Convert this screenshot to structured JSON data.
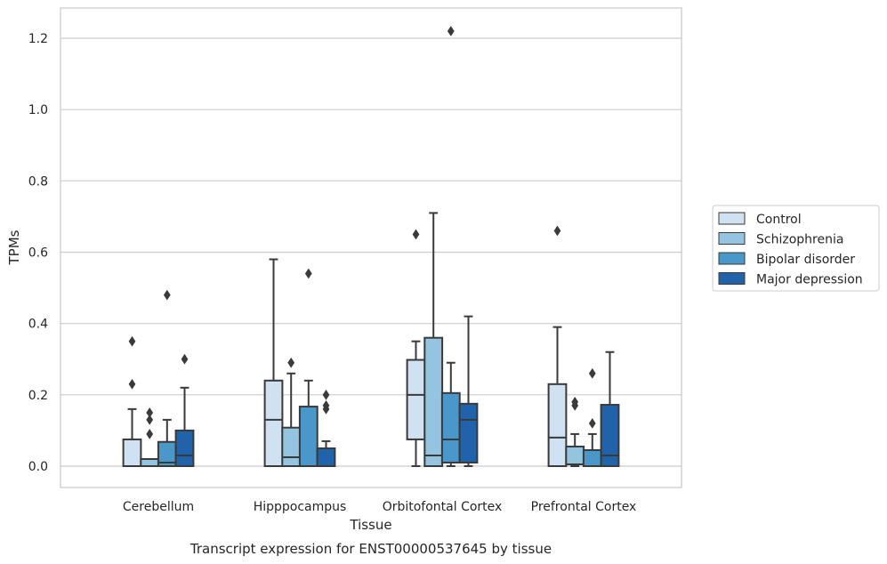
{
  "chart_data": {
    "type": "box",
    "title": "Transcript expression for ENST00000537645 by tissue",
    "xlabel": "Tissue",
    "ylabel": "TPMs",
    "ylim": [
      -0.06,
      1.28
    ],
    "yticks": [
      "0.0",
      "0.2",
      "0.4",
      "0.6",
      "0.8",
      "1.0",
      "1.2"
    ],
    "grid": true,
    "legend_position": "right",
    "categories": [
      "Cerebellum",
      "Hipppocampus",
      "Orbitofontal Cortex",
      "Prefrontal Cortex"
    ],
    "colors": {
      "Control": "#d0e1f2",
      "Schizophrenia": "#94c4df",
      "Bipolar disorder": "#4a98c9",
      "Major depression": "#2163aa",
      "box_edge": "#3a3a3a",
      "grid": "#cccccc",
      "frame": "#cccccc"
    },
    "series": [
      {
        "name": "Control",
        "boxes": [
          {
            "whislo": 0.0,
            "q1": 0.0,
            "med": 0.0,
            "q3": 0.075,
            "whishi": 0.16,
            "fliers": [
              0.23,
              0.35
            ]
          },
          {
            "whislo": 0.0,
            "q1": 0.0,
            "med": 0.13,
            "q3": 0.24,
            "whishi": 0.58,
            "fliers": []
          },
          {
            "whislo": 0.0,
            "q1": 0.075,
            "med": 0.2,
            "q3": 0.298,
            "whishi": 0.35,
            "fliers": [
              0.65
            ]
          },
          {
            "whislo": 0.0,
            "q1": 0.0,
            "med": 0.08,
            "q3": 0.23,
            "whishi": 0.39,
            "fliers": [
              0.66
            ]
          }
        ]
      },
      {
        "name": "Schizophrenia",
        "boxes": [
          {
            "whislo": 0.0,
            "q1": 0.0,
            "med": 0.0,
            "q3": 0.02,
            "whishi": 0.02,
            "fliers": [
              0.09,
              0.13,
              0.15
            ]
          },
          {
            "whislo": 0.0,
            "q1": 0.0,
            "med": 0.025,
            "q3": 0.108,
            "whishi": 0.26,
            "fliers": [
              0.29
            ]
          },
          {
            "whislo": 0.0,
            "q1": 0.0,
            "med": 0.03,
            "q3": 0.36,
            "whishi": 0.71,
            "fliers": []
          },
          {
            "whislo": 0.0,
            "q1": 0.005,
            "med": 0.005,
            "q3": 0.055,
            "whishi": 0.09,
            "fliers": [
              0.17,
              0.18
            ]
          }
        ]
      },
      {
        "name": "Bipolar disorder",
        "boxes": [
          {
            "whislo": 0.0,
            "q1": 0.0,
            "med": 0.01,
            "q3": 0.068,
            "whishi": 0.13,
            "fliers": [
              0.48
            ]
          },
          {
            "whislo": 0.0,
            "q1": 0.0,
            "med": 0.0,
            "q3": 0.167,
            "whishi": 0.24,
            "fliers": [
              0.54
            ]
          },
          {
            "whislo": 0.0,
            "q1": 0.01,
            "med": 0.075,
            "q3": 0.205,
            "whishi": 0.29,
            "fliers": [
              1.22
            ]
          },
          {
            "whislo": 0.0,
            "q1": 0.0,
            "med": 0.0,
            "q3": 0.045,
            "whishi": 0.09,
            "fliers": [
              0.12,
              0.26
            ]
          }
        ]
      },
      {
        "name": "Major depression",
        "boxes": [
          {
            "whislo": 0.0,
            "q1": 0.0,
            "med": 0.03,
            "q3": 0.1,
            "whishi": 0.22,
            "fliers": [
              0.3
            ]
          },
          {
            "whislo": 0.0,
            "q1": 0.0,
            "med": 0.0,
            "q3": 0.05,
            "whishi": 0.07,
            "fliers": [
              0.16,
              0.17,
              0.2
            ]
          },
          {
            "whislo": 0.0,
            "q1": 0.01,
            "med": 0.13,
            "q3": 0.175,
            "whishi": 0.42,
            "fliers": []
          },
          {
            "whislo": 0.0,
            "q1": 0.0,
            "med": 0.03,
            "q3": 0.172,
            "whishi": 0.32,
            "fliers": []
          }
        ]
      }
    ]
  }
}
